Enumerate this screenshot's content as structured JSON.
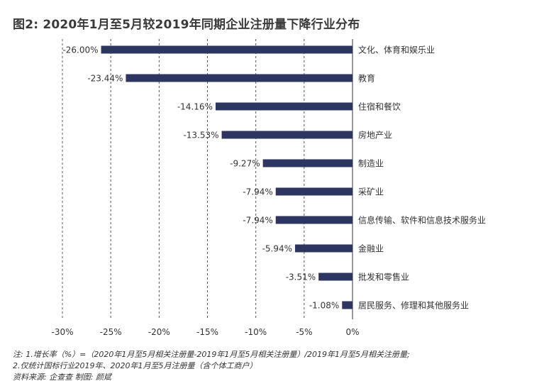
{
  "chart_data": {
    "type": "bar",
    "orientation": "horizontal",
    "title": "图2: 2020年1月至5月较2019年同期企业注册量下降行业分布",
    "categories": [
      "文化、体育和娱乐业",
      "教育",
      "住宿和餐饮",
      "房地产业",
      "制造业",
      "采矿业",
      "信息传输、软件和信息技术服务业",
      "金融业",
      "批发和零售业",
      "居民服务、修理和其他服务业"
    ],
    "values": [
      -26.0,
      -23.44,
      -14.16,
      -13.53,
      -9.27,
      -7.94,
      -7.94,
      -5.94,
      -3.51,
      -1.08
    ],
    "value_labels": [
      "-26.00%",
      "-23.44%",
      "-14.16%",
      "-13.53%",
      "-9.27%",
      "-7.94%",
      "-7.94%",
      "-5.94%",
      "-3.51%",
      "-1.08%"
    ],
    "xlim": [
      -30,
      0
    ],
    "xticks": [
      -30,
      -25,
      -20,
      -15,
      -10,
      -5,
      0
    ],
    "xtick_labels": [
      "-30%",
      "-25%",
      "-20%",
      "-15%",
      "-10%",
      "-5%",
      "0%"
    ],
    "grid": "vertical dashed",
    "bar_color": "#2e3560"
  },
  "notes": {
    "line1": "注: 1.增长率（%）=（2020年1月至5月相关注册量-2019年1月至5月相关注册量）/2019年1月至5月相关注册量;",
    "line2": "2.仅统计国标行业2019年、2020年1月至5月注册量（含个体工商户）",
    "line3": "资料来源: 企查查      制图: 颜斌"
  }
}
